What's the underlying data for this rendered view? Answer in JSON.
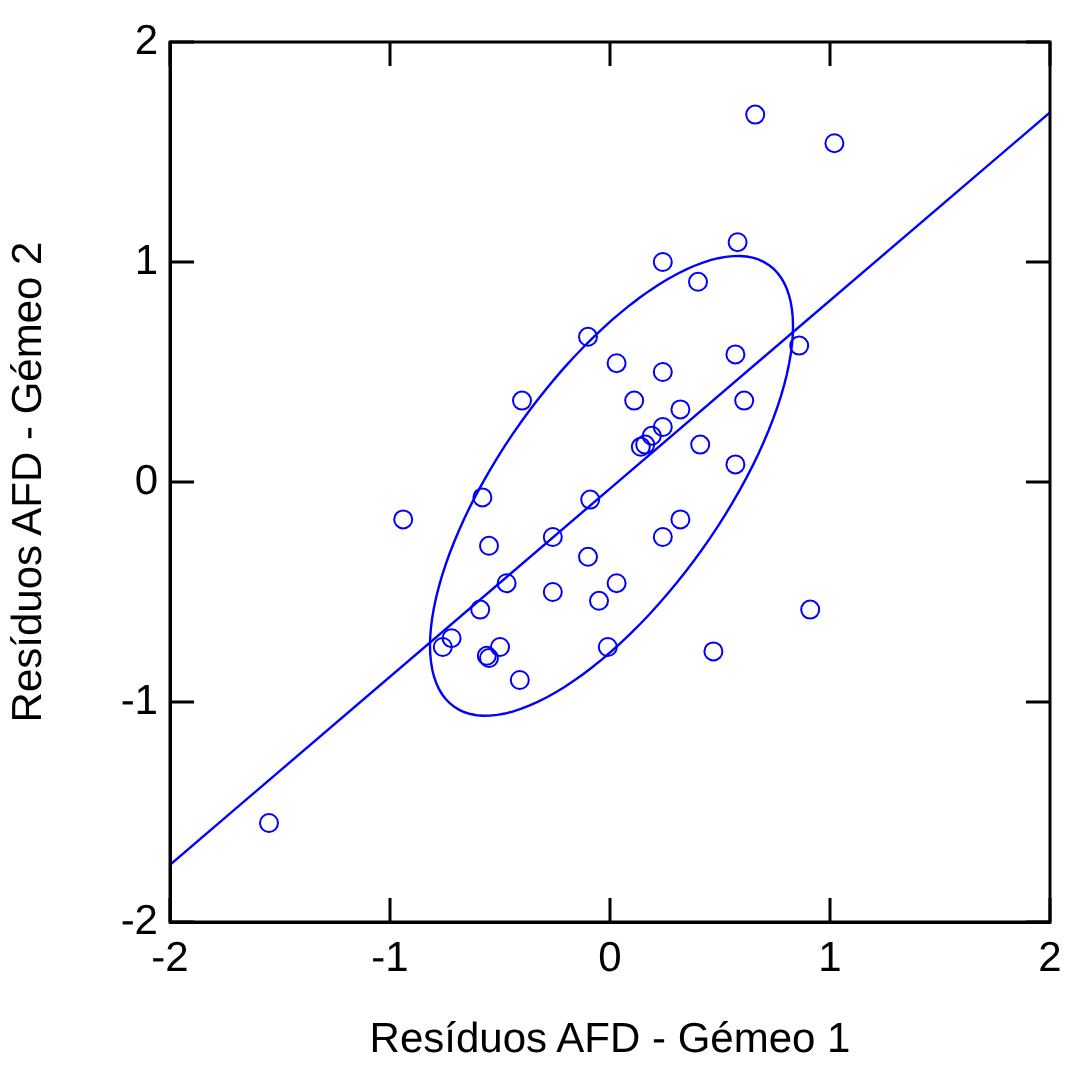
{
  "chart_data": {
    "type": "scatter",
    "xlabel": "Resíduos AFD - Gémeo 1",
    "ylabel": "Resíduos AFD - Gémeo 2",
    "xlim": [
      -2,
      2
    ],
    "ylim": [
      -2,
      2
    ],
    "xticks": [
      -2,
      -1,
      0,
      1,
      2
    ],
    "yticks": [
      -2,
      -1,
      0,
      1,
      2
    ],
    "legend": false,
    "series": [
      {
        "type": "scatter",
        "marker": "circle",
        "color": "#0000ff",
        "x": [
          0.66,
          1.02,
          0.58,
          0.24,
          0.4,
          -0.1,
          0.86,
          0.57,
          0.03,
          0.24,
          -0.4,
          0.11,
          0.61,
          0.32,
          0.24,
          0.19,
          0.16,
          0.14,
          0.41,
          0.57,
          -0.58,
          -0.09,
          -0.94,
          0.32,
          -0.55,
          -0.26,
          0.24,
          -0.1,
          -0.47,
          0.03,
          -0.26,
          -0.05,
          -0.59,
          0.91,
          -0.72,
          -0.76,
          -0.5,
          -0.01,
          0.47,
          -0.55,
          -0.56,
          -0.41,
          -1.55
        ],
        "values": [
          1.67,
          1.54,
          1.09,
          1.0,
          0.91,
          0.66,
          0.62,
          0.58,
          0.54,
          0.5,
          0.37,
          0.37,
          0.37,
          0.33,
          0.25,
          0.21,
          0.17,
          0.16,
          0.17,
          0.08,
          -0.07,
          -0.08,
          -0.17,
          -0.17,
          -0.29,
          -0.25,
          -0.25,
          -0.34,
          -0.46,
          -0.46,
          -0.5,
          -0.54,
          -0.58,
          -0.58,
          -0.71,
          -0.75,
          -0.75,
          -0.75,
          -0.77,
          -0.8,
          -0.79,
          -0.9,
          -1.55
        ]
      },
      {
        "type": "line",
        "marker": "none",
        "color": "#0000ff",
        "x": [
          -2,
          2
        ],
        "values": [
          -1.74,
          1.68
        ]
      }
    ]
  }
}
